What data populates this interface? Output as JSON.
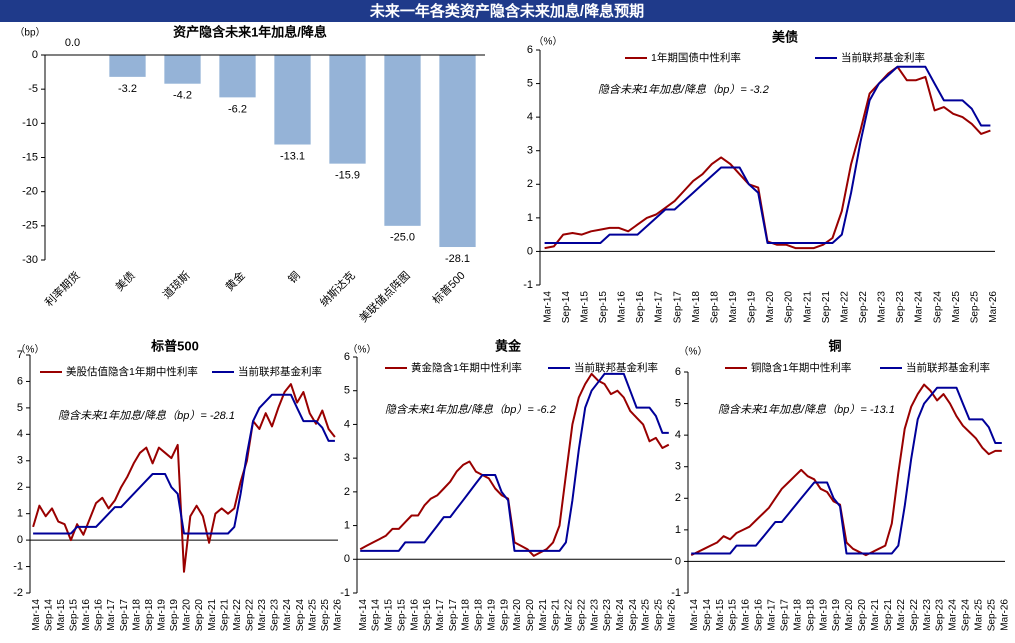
{
  "title": "未来一年各类资产隐含未来加息/降息预期",
  "chart_data": [
    {
      "type": "bar",
      "title": "资产隐含未来1年加息/降息",
      "y_unit": "（bp）",
      "categories": [
        "利率期货",
        "美债",
        "道琼斯",
        "黄金",
        "铜",
        "纳斯达克",
        "美联储点阵图",
        "标普500"
      ],
      "values": [
        0,
        -3.2,
        -4.2,
        -6.2,
        -13.1,
        -15.9,
        -25,
        -28.1
      ],
      "value_labels": [
        "0.0",
        "-3.2",
        "-4.2",
        "-6.2",
        "-13.1",
        "-15.9",
        "-25.0",
        "-28.1"
      ],
      "color": "#95b3d7",
      "ylim": [
        -30,
        0
      ],
      "yticks": [
        0,
        -5,
        -10,
        -15,
        -20,
        -25,
        -30
      ]
    },
    {
      "type": "line",
      "title": "美债",
      "y_unit": "（%）",
      "annotation": "隐含未来1年加息/降息（bp）= -3.2",
      "x": [
        "Mar-14",
        null,
        "Sep-14",
        null,
        "Mar-15",
        null,
        "Sep-15",
        null,
        "Mar-16",
        null,
        "Sep-16",
        null,
        "Mar-17",
        null,
        "Sep-17",
        null,
        "Mar-18",
        null,
        "Sep-18",
        null,
        "Mar-19",
        null,
        "Sep-19",
        null,
        "Mar-20",
        null,
        "Sep-20",
        null,
        "Mar-21",
        null,
        "Sep-21",
        null,
        "Mar-22",
        null,
        "Sep-22",
        null,
        "Mar-23",
        null,
        "Sep-23",
        null,
        "Mar-24",
        null,
        "Sep-24",
        null,
        "Mar-25",
        null,
        "Sep-25",
        null,
        "Mar-26"
      ],
      "series": [
        {
          "name": "1年期国债中性利率",
          "color": "#990000",
          "values": [
            0.1,
            0.15,
            0.5,
            0.55,
            0.5,
            0.6,
            0.65,
            0.7,
            0.7,
            0.6,
            0.8,
            1.0,
            1.1,
            1.3,
            1.5,
            1.8,
            2.1,
            2.3,
            2.6,
            2.8,
            2.6,
            2.3,
            2.0,
            1.9,
            0.3,
            0.2,
            0.2,
            0.1,
            0.1,
            0.1,
            0.2,
            0.4,
            1.2,
            2.6,
            3.6,
            4.7,
            5.0,
            5.3,
            5.5,
            5.1,
            5.1,
            5.2,
            4.2,
            4.3,
            4.1,
            4.0,
            3.8,
            3.5,
            3.6
          ]
        },
        {
          "name": "当前联邦基金利率",
          "color": "#000099",
          "values": [
            0.25,
            0.25,
            0.25,
            0.25,
            0.25,
            0.25,
            0.25,
            0.5,
            0.5,
            0.5,
            0.5,
            0.75,
            1.0,
            1.25,
            1.25,
            1.5,
            1.75,
            2.0,
            2.25,
            2.5,
            2.5,
            2.5,
            2.0,
            1.75,
            0.25,
            0.25,
            0.25,
            0.25,
            0.25,
            0.25,
            0.25,
            0.25,
            0.5,
            1.75,
            3.25,
            4.5,
            5.0,
            5.25,
            5.5,
            5.5,
            5.5,
            5.5,
            5.0,
            4.5,
            4.5,
            4.5,
            4.25,
            3.75,
            3.75
          ]
        }
      ],
      "ylim": [
        -1,
        6
      ],
      "yticks": [
        -1,
        0,
        1,
        2,
        3,
        4,
        5,
        6
      ]
    },
    {
      "type": "line",
      "title": "标普500",
      "y_unit": "（%）",
      "annotation": "隐含未来1年加息/降息（bp）= -28.1",
      "x": [
        "Mar-14",
        null,
        "Sep-14",
        null,
        "Mar-15",
        null,
        "Sep-15",
        null,
        "Mar-16",
        null,
        "Sep-16",
        null,
        "Mar-17",
        null,
        "Sep-17",
        null,
        "Mar-18",
        null,
        "Sep-18",
        null,
        "Mar-19",
        null,
        "Sep-19",
        null,
        "Mar-20",
        null,
        "Sep-20",
        null,
        "Mar-21",
        null,
        "Sep-21",
        null,
        "Mar-22",
        null,
        "Sep-22",
        null,
        "Mar-23",
        null,
        "Sep-23",
        null,
        "Mar-24",
        null,
        "Sep-24",
        null,
        "Mar-25",
        null,
        "Sep-25",
        null,
        "Mar-26"
      ],
      "series": [
        {
          "name": "美股估值隐含1年期中性利率",
          "color": "#990000",
          "values": [
            0.5,
            1.3,
            0.9,
            1.2,
            0.7,
            0.6,
            0.0,
            0.6,
            0.2,
            0.8,
            1.4,
            1.6,
            1.2,
            1.5,
            2.0,
            2.4,
            2.9,
            3.3,
            3.5,
            2.9,
            3.5,
            3.3,
            3.1,
            3.6,
            -1.2,
            0.9,
            1.3,
            0.9,
            -0.1,
            1.0,
            1.2,
            1.0,
            1.2,
            2.2,
            3.0,
            4.5,
            4.2,
            4.8,
            4.3,
            5.0,
            5.6,
            5.9,
            5.2,
            5.6,
            4.8,
            4.4,
            4.9,
            4.2,
            3.9
          ]
        },
        {
          "name": "当前联邦基金利率",
          "color": "#000099",
          "values": [
            0.25,
            0.25,
            0.25,
            0.25,
            0.25,
            0.25,
            0.25,
            0.5,
            0.5,
            0.5,
            0.5,
            0.75,
            1.0,
            1.25,
            1.25,
            1.5,
            1.75,
            2.0,
            2.25,
            2.5,
            2.5,
            2.5,
            2.0,
            1.75,
            0.25,
            0.25,
            0.25,
            0.25,
            0.25,
            0.25,
            0.25,
            0.25,
            0.5,
            1.75,
            3.25,
            4.5,
            5.0,
            5.25,
            5.5,
            5.5,
            5.5,
            5.5,
            5.0,
            4.5,
            4.5,
            4.5,
            4.25,
            3.75,
            3.75
          ]
        }
      ],
      "ylim": [
        -2,
        7
      ],
      "yticks": [
        -2,
        -1,
        0,
        1,
        2,
        3,
        4,
        5,
        6,
        7
      ]
    },
    {
      "type": "line",
      "title": "黄金",
      "y_unit": "（%）",
      "annotation": "隐含未来1年加息/降息（bp）= -6.2",
      "x": [
        "Mar-14",
        null,
        "Sep-14",
        null,
        "Mar-15",
        null,
        "Sep-15",
        null,
        "Mar-16",
        null,
        "Sep-16",
        null,
        "Mar-17",
        null,
        "Sep-17",
        null,
        "Mar-18",
        null,
        "Sep-18",
        null,
        "Mar-19",
        null,
        "Sep-19",
        null,
        "Mar-20",
        null,
        "Sep-20",
        null,
        "Mar-21",
        null,
        "Sep-21",
        null,
        "Mar-22",
        null,
        "Sep-22",
        null,
        "Mar-23",
        null,
        "Sep-23",
        null,
        "Mar-24",
        null,
        "Sep-24",
        null,
        "Mar-25",
        null,
        "Sep-25",
        null,
        "Mar-26"
      ],
      "series": [
        {
          "name": "黄金隐含1年期中性利率",
          "color": "#990000",
          "values": [
            0.3,
            0.4,
            0.5,
            0.6,
            0.7,
            0.9,
            0.9,
            1.1,
            1.3,
            1.3,
            1.6,
            1.8,
            1.9,
            2.1,
            2.3,
            2.6,
            2.8,
            2.9,
            2.6,
            2.5,
            2.4,
            2.1,
            1.9,
            1.8,
            0.5,
            0.4,
            0.3,
            0.1,
            0.2,
            0.3,
            0.5,
            1.0,
            2.5,
            4.0,
            4.8,
            5.2,
            5.5,
            5.3,
            5.2,
            4.9,
            5.0,
            4.8,
            4.4,
            4.2,
            4.0,
            3.5,
            3.6,
            3.3,
            3.4
          ]
        },
        {
          "name": "当前联邦基金利率",
          "color": "#000099",
          "values": [
            0.25,
            0.25,
            0.25,
            0.25,
            0.25,
            0.25,
            0.25,
            0.5,
            0.5,
            0.5,
            0.5,
            0.75,
            1.0,
            1.25,
            1.25,
            1.5,
            1.75,
            2.0,
            2.25,
            2.5,
            2.5,
            2.5,
            2.0,
            1.75,
            0.25,
            0.25,
            0.25,
            0.25,
            0.25,
            0.25,
            0.25,
            0.25,
            0.5,
            1.75,
            3.25,
            4.5,
            5.0,
            5.25,
            5.5,
            5.5,
            5.5,
            5.5,
            5.0,
            4.5,
            4.5,
            4.5,
            4.25,
            3.75,
            3.75
          ]
        }
      ],
      "ylim": [
        -1,
        6
      ],
      "yticks": [
        -1,
        0,
        1,
        2,
        3,
        4,
        5,
        6
      ]
    },
    {
      "type": "line",
      "title": "铜",
      "y_unit": "（%）",
      "annotation": "隐含未来1年加息/降息（bp）= -13.1",
      "x": [
        "Mar-14",
        null,
        "Sep-14",
        null,
        "Mar-15",
        null,
        "Sep-15",
        null,
        "Mar-16",
        null,
        "Sep-16",
        null,
        "Mar-17",
        null,
        "Sep-17",
        null,
        "Mar-18",
        null,
        "Sep-18",
        null,
        "Mar-19",
        null,
        "Sep-19",
        null,
        "Mar-20",
        null,
        "Sep-20",
        null,
        "Mar-21",
        null,
        "Sep-21",
        null,
        "Mar-22",
        null,
        "Sep-22",
        null,
        "Mar-23",
        null,
        "Sep-23",
        null,
        "Mar-24",
        null,
        "Sep-24",
        null,
        "Mar-25",
        null,
        "Sep-25",
        null,
        "Mar-26"
      ],
      "series": [
        {
          "name": "铜隐含1年期中性利率",
          "color": "#990000",
          "values": [
            0.2,
            0.3,
            0.4,
            0.5,
            0.6,
            0.8,
            0.7,
            0.9,
            1.0,
            1.1,
            1.3,
            1.5,
            1.7,
            2.0,
            2.3,
            2.5,
            2.7,
            2.9,
            2.7,
            2.6,
            2.3,
            2.2,
            1.9,
            1.8,
            0.6,
            0.4,
            0.3,
            0.2,
            0.3,
            0.4,
            0.5,
            1.2,
            2.8,
            4.2,
            4.9,
            5.3,
            5.6,
            5.4,
            5.1,
            5.3,
            5.0,
            4.6,
            4.3,
            4.1,
            3.9,
            3.6,
            3.4,
            3.5,
            3.5
          ]
        },
        {
          "name": "当前联邦基金利率",
          "color": "#000099",
          "values": [
            0.25,
            0.25,
            0.25,
            0.25,
            0.25,
            0.25,
            0.25,
            0.5,
            0.5,
            0.5,
            0.5,
            0.75,
            1.0,
            1.25,
            1.25,
            1.5,
            1.75,
            2.0,
            2.25,
            2.5,
            2.5,
            2.5,
            2.0,
            1.75,
            0.25,
            0.25,
            0.25,
            0.25,
            0.25,
            0.25,
            0.25,
            0.25,
            0.5,
            1.75,
            3.25,
            4.5,
            5.0,
            5.25,
            5.5,
            5.5,
            5.5,
            5.5,
            5.0,
            4.5,
            4.5,
            4.5,
            4.25,
            3.75,
            3.75
          ]
        }
      ],
      "ylim": [
        -1,
        6
      ],
      "yticks": [
        -1,
        0,
        1,
        2,
        3,
        4,
        5,
        6
      ]
    }
  ]
}
